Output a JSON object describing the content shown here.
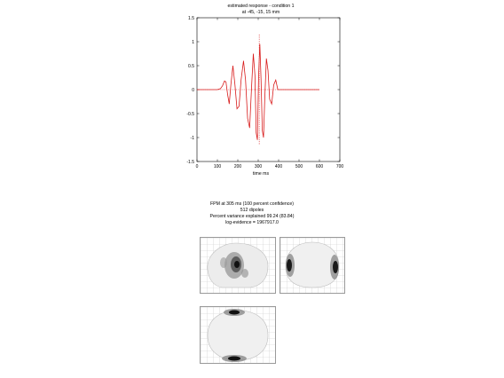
{
  "chart_data": {
    "type": "line",
    "title": "estimated response - condition 1",
    "subtitle": "at -45, -15, 15 mm",
    "xlabel": "time ms",
    "ylabel": "",
    "xlim": [
      0,
      700
    ],
    "ylim": [
      -1.5,
      1.5
    ],
    "xticks": [
      0,
      100,
      200,
      300,
      400,
      500,
      600,
      700
    ],
    "yticks": [
      -1.5,
      -1,
      -0.5,
      0,
      0.5,
      1,
      1.5
    ],
    "grid": false,
    "line_color": "#d81b1b",
    "marker_color": "#d81b1b",
    "series": [
      {
        "values": [
          [
            0,
            0
          ],
          [
            100,
            0
          ],
          [
            115,
            0.02
          ],
          [
            125,
            0.08
          ],
          [
            135,
            0.18
          ],
          [
            142,
            0.16
          ],
          [
            150,
            -0.1
          ],
          [
            158,
            -0.3
          ],
          [
            166,
            0.1
          ],
          [
            176,
            0.5
          ],
          [
            186,
            0.1
          ],
          [
            196,
            -0.4
          ],
          [
            206,
            -0.35
          ],
          [
            216,
            0.2
          ],
          [
            228,
            0.6
          ],
          [
            238,
            0.2
          ],
          [
            248,
            -0.6
          ],
          [
            258,
            -0.8
          ],
          [
            268,
            0.1
          ],
          [
            276,
            0.75
          ],
          [
            284,
            0.3
          ],
          [
            290,
            -0.9
          ],
          [
            296,
            -1.05
          ],
          [
            302,
            0.3
          ],
          [
            308,
            0.95
          ],
          [
            314,
            0.2
          ],
          [
            320,
            -0.85
          ],
          [
            326,
            -1.0
          ],
          [
            332,
            -0.2
          ],
          [
            340,
            0.65
          ],
          [
            348,
            0.4
          ],
          [
            356,
            -0.2
          ],
          [
            366,
            -0.3
          ],
          [
            376,
            0.1
          ],
          [
            386,
            0.2
          ],
          [
            396,
            0
          ],
          [
            410,
            0
          ],
          [
            600,
            0
          ]
        ]
      }
    ],
    "marker_x": 305
  },
  "fpm": {
    "line1": "FPM at 305 ms (100 percent confidence)",
    "line2": "512 dipoles",
    "line3": "Percent variance explained 99.24 (83.84)",
    "line4": "log-evidence = 1967917.0"
  }
}
